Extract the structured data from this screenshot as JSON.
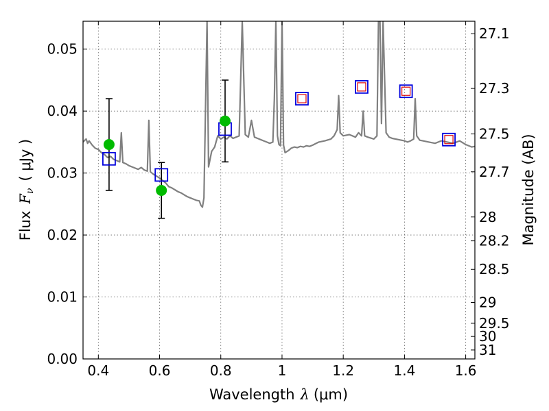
{
  "chart_data": {
    "type": "line",
    "xlabel": "Wavelength",
    "xlabel_symbol": "λ",
    "xlabel_unit": "(μm)",
    "ylabel": "Flux",
    "ylabel_symbol": "F",
    "ylabel_subscript": "ν",
    "ylabel_unit": "( μJy )",
    "y2label": "Magnitude (AB)",
    "xlim": [
      0.35,
      1.63
    ],
    "ylim": [
      0.0,
      0.0545
    ],
    "grid": true,
    "x_ticks": [
      0.4,
      0.6,
      0.8,
      1.0,
      1.2,
      1.4,
      1.6
    ],
    "x_tick_labels": [
      "0.4",
      "0.6",
      "0.8",
      "1",
      "1.2",
      "1.4",
      "1.6"
    ],
    "y_ticks": [
      0.0,
      0.01,
      0.02,
      0.03,
      0.04,
      0.05
    ],
    "y_tick_labels": [
      "0.00",
      "0.01",
      "0.02",
      "0.03",
      "0.04",
      "0.05"
    ],
    "y2_ticks": [
      27.1,
      27.3,
      27.5,
      27.7,
      28,
      28.2,
      28.5,
      29,
      29.5,
      30,
      31
    ],
    "y2_tick_labels": [
      "27.1",
      "27.3",
      "27.5",
      "27.7",
      "28",
      "28.2",
      "28.5",
      "29",
      "29.5",
      "30",
      "31"
    ],
    "colors": {
      "spectrum": "#808080",
      "observed": "#00bb00",
      "model_box": "#0000dd",
      "predicted_box": "#dd0000",
      "errorbar": "#000000",
      "grid": "#666666"
    },
    "series": [
      {
        "role": "template-spectrum",
        "x": [
          0.35,
          0.36,
          0.365,
          0.37,
          0.38,
          0.39,
          0.4,
          0.41,
          0.42,
          0.43,
          0.44,
          0.45,
          0.46,
          0.47,
          0.475,
          0.48,
          0.49,
          0.5,
          0.51,
          0.52,
          0.53,
          0.54,
          0.55,
          0.56,
          0.565,
          0.57,
          0.58,
          0.59,
          0.6,
          0.61,
          0.62,
          0.63,
          0.64,
          0.65,
          0.66,
          0.67,
          0.68,
          0.69,
          0.7,
          0.71,
          0.72,
          0.73,
          0.735,
          0.74,
          0.745,
          0.75,
          0.755,
          0.76,
          0.77,
          0.78,
          0.79,
          0.8,
          0.81,
          0.82,
          0.83,
          0.84,
          0.85,
          0.86,
          0.87,
          0.88,
          0.89,
          0.9,
          0.91,
          0.92,
          0.93,
          0.94,
          0.95,
          0.96,
          0.97,
          0.975,
          0.98,
          0.985,
          0.99,
          0.995,
          1.0,
          1.005,
          1.01,
          1.02,
          1.03,
          1.04,
          1.05,
          1.06,
          1.07,
          1.08,
          1.09,
          1.1,
          1.12,
          1.14,
          1.16,
          1.17,
          1.18,
          1.185,
          1.19,
          1.2,
          1.22,
          1.24,
          1.25,
          1.26,
          1.265,
          1.27,
          1.28,
          1.3,
          1.31,
          1.315,
          1.32,
          1.325,
          1.33,
          1.34,
          1.35,
          1.36,
          1.38,
          1.4,
          1.41,
          1.42,
          1.43,
          1.435,
          1.44,
          1.45,
          1.46,
          1.48,
          1.5,
          1.52,
          1.54,
          1.56,
          1.58,
          1.6,
          1.62,
          1.63
        ],
        "y": [
          0.035,
          0.0355,
          0.0348,
          0.0352,
          0.0345,
          0.034,
          0.0338,
          0.0333,
          0.033,
          0.0325,
          0.0327,
          0.0322,
          0.032,
          0.0318,
          0.0365,
          0.0317,
          0.0315,
          0.0312,
          0.031,
          0.0308,
          0.0306,
          0.0309,
          0.0305,
          0.0303,
          0.0385,
          0.0302,
          0.0298,
          0.0295,
          0.0292,
          0.0288,
          0.0284,
          0.0278,
          0.0276,
          0.0273,
          0.027,
          0.0268,
          0.0265,
          0.0262,
          0.026,
          0.0258,
          0.0256,
          0.0255,
          0.0248,
          0.0245,
          0.026,
          0.04,
          0.0545,
          0.031,
          0.0335,
          0.0342,
          0.036,
          0.0355,
          0.0358,
          0.0355,
          0.036,
          0.0356,
          0.0358,
          0.036,
          0.0545,
          0.0362,
          0.0358,
          0.0385,
          0.0358,
          0.0356,
          0.0354,
          0.0352,
          0.035,
          0.0348,
          0.035,
          0.042,
          0.0545,
          0.036,
          0.0346,
          0.0344,
          0.0545,
          0.0345,
          0.0333,
          0.0336,
          0.034,
          0.0342,
          0.0341,
          0.0343,
          0.0342,
          0.0344,
          0.0343,
          0.0345,
          0.035,
          0.0352,
          0.0355,
          0.036,
          0.037,
          0.0425,
          0.0365,
          0.036,
          0.0362,
          0.0358,
          0.0365,
          0.036,
          0.04,
          0.036,
          0.0358,
          0.0355,
          0.036,
          0.0545,
          0.0545,
          0.038,
          0.0545,
          0.0365,
          0.0358,
          0.0356,
          0.0354,
          0.0352,
          0.035,
          0.0352,
          0.0355,
          0.042,
          0.036,
          0.0353,
          0.0352,
          0.035,
          0.0348,
          0.0352,
          0.035,
          0.0348,
          0.0352,
          0.0346,
          0.0342,
          0.0343
        ]
      },
      {
        "role": "observed-flux",
        "x": [
          0.435,
          0.606,
          0.814
        ],
        "y": [
          0.0346,
          0.0272,
          0.0384
        ],
        "yerr_low": [
          0.0074,
          0.0045,
          0.0066
        ],
        "yerr_high": [
          0.0074,
          0.0045,
          0.0066
        ]
      },
      {
        "role": "model-synthetic-flux",
        "x": [
          0.435,
          0.606,
          0.814,
          1.065,
          1.26,
          1.405,
          1.545
        ],
        "y": [
          0.0323,
          0.0297,
          0.0371,
          0.042,
          0.0439,
          0.0432,
          0.0354
        ]
      },
      {
        "role": "predicted-flux",
        "x": [
          1.065,
          1.26,
          1.405,
          1.545
        ],
        "y": [
          0.042,
          0.0439,
          0.0432,
          0.0354
        ]
      }
    ]
  }
}
